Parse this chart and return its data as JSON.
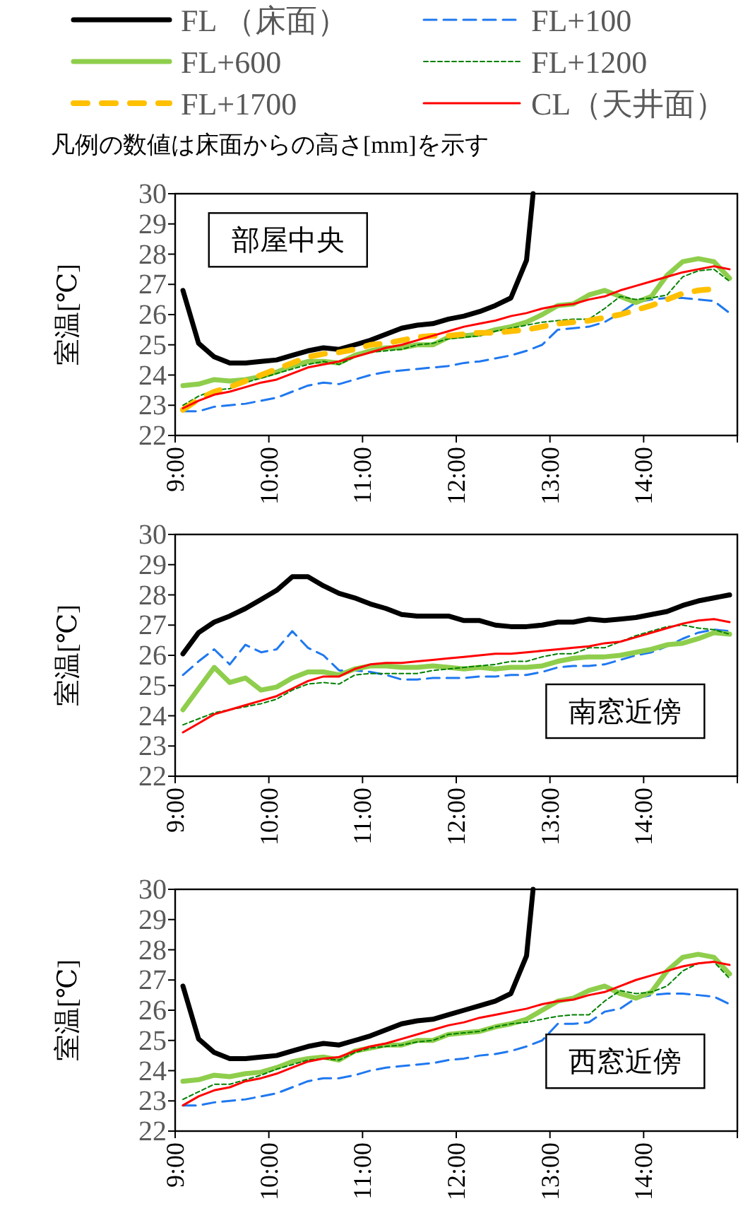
{
  "chart_data": [
    {
      "type": "line",
      "title": "部屋中央",
      "ylabel": "室温[℃]",
      "legend": "top",
      "annotations": [
        "凡例の数値は床面からの高さ[mm]を示す"
      ],
      "x": [
        9.083,
        9.25,
        9.417,
        9.583,
        9.75,
        9.917,
        10.083,
        10.25,
        10.417,
        10.583,
        10.75,
        10.917,
        11.083,
        11.25,
        11.417,
        11.583,
        11.75,
        11.917,
        12.083,
        12.25,
        12.417,
        12.583,
        12.75,
        12.917,
        13.083,
        13.25,
        13.417,
        13.583,
        13.75,
        13.917,
        14.083,
        14.25,
        14.417,
        14.583,
        14.75,
        14.917
      ],
      "xlim": [
        9,
        15
      ],
      "xticks": [
        {
          "value": 9,
          "label": "9:00"
        },
        {
          "value": 10,
          "label": "10:00"
        },
        {
          "value": 11,
          "label": "11:00"
        },
        {
          "value": 12,
          "label": "12:00"
        },
        {
          "value": 13,
          "label": "13:00"
        },
        {
          "value": 14,
          "label": "14:00"
        },
        {
          "value": 15,
          "label": null
        }
      ],
      "ylim": [
        22,
        30
      ],
      "yticks": [
        22,
        23,
        24,
        25,
        26,
        27,
        28,
        29,
        30
      ],
      "grid": false,
      "marker": "none",
      "series": [
        {
          "name": "FL （床面）",
          "color": "#000000",
          "line_style": "solid",
          "x": [
            9.083,
            9.25,
            9.417,
            9.583,
            9.75,
            9.917,
            10.083,
            10.25,
            10.417,
            10.583,
            10.75,
            10.917,
            11.083,
            11.25,
            11.417,
            11.583,
            11.75,
            11.917,
            12.083,
            12.25,
            12.417,
            12.583,
            12.75,
            12.82
          ],
          "values": [
            26.8,
            25.05,
            24.6,
            24.4,
            24.4,
            24.45,
            24.5,
            24.65,
            24.8,
            24.9,
            24.85,
            25.0,
            25.15,
            25.35,
            25.55,
            25.65,
            25.7,
            25.85,
            25.95,
            26.1,
            26.3,
            26.55,
            27.8,
            30
          ]
        },
        {
          "name": "FL+100",
          "color": "#1f78f0",
          "line_style": "dashed",
          "values": [
            22.8,
            22.8,
            22.95,
            23.0,
            23.05,
            23.15,
            23.25,
            23.45,
            23.65,
            23.75,
            23.7,
            23.85,
            24.0,
            24.1,
            24.15,
            24.2,
            24.25,
            24.3,
            24.4,
            24.45,
            24.55,
            24.65,
            24.8,
            25.0,
            25.5,
            25.55,
            25.6,
            25.75,
            26.05,
            26.4,
            26.5,
            26.55,
            26.55,
            26.5,
            26.45,
            26.05
          ]
        },
        {
          "name": "FL+600",
          "color": "#8fce4c",
          "line_style": "solid",
          "values": [
            23.65,
            23.7,
            23.85,
            23.8,
            23.85,
            23.95,
            24.1,
            24.3,
            24.45,
            24.45,
            24.4,
            24.65,
            24.8,
            24.9,
            24.9,
            25.0,
            25.0,
            25.25,
            25.3,
            25.35,
            25.5,
            25.6,
            25.75,
            26.0,
            26.3,
            26.35,
            26.65,
            26.8,
            26.6,
            26.4,
            26.6,
            27.3,
            27.75,
            27.85,
            27.75,
            27.2
          ]
        },
        {
          "name": "FL+1200",
          "color": "#008000",
          "line_style": "dotted",
          "values": [
            23.0,
            23.3,
            23.5,
            23.55,
            23.75,
            23.9,
            24.05,
            24.2,
            24.35,
            24.45,
            24.35,
            24.6,
            24.75,
            24.8,
            24.85,
            25.0,
            25.05,
            25.2,
            25.25,
            25.3,
            25.45,
            25.55,
            25.65,
            25.75,
            25.8,
            25.85,
            25.85,
            26.2,
            26.6,
            26.5,
            26.55,
            26.65,
            27.25,
            27.45,
            27.5,
            27.1
          ]
        },
        {
          "name": "FL+1700",
          "color": "#ffc000",
          "line_style": "dashed",
          "values": [
            22.85,
            23.2,
            23.45,
            23.6,
            23.8,
            24.0,
            24.2,
            24.4,
            24.6,
            24.7,
            24.75,
            24.85,
            25.0,
            25.05,
            25.15,
            25.25,
            25.3,
            25.3,
            25.35,
            25.4,
            25.4,
            25.45,
            25.5,
            25.6,
            25.7,
            25.75,
            25.8,
            25.9,
            26.0,
            26.15,
            26.3,
            26.5,
            26.7,
            26.8,
            26.85,
            null
          ]
        },
        {
          "name": "CL（天井面）",
          "color": "#ff0000",
          "line_style": "solid",
          "values": [
            22.9,
            23.15,
            23.35,
            23.45,
            23.6,
            23.75,
            23.85,
            24.05,
            24.25,
            24.35,
            24.45,
            24.6,
            24.75,
            24.9,
            25.0,
            25.15,
            25.3,
            25.45,
            25.6,
            25.7,
            25.8,
            25.95,
            26.05,
            26.2,
            26.3,
            26.35,
            26.5,
            26.6,
            26.8,
            26.95,
            27.1,
            27.25,
            27.4,
            27.5,
            27.6,
            27.5
          ]
        }
      ]
    },
    {
      "type": "line",
      "title": "南窓近傍",
      "ylabel": "室温[℃]",
      "x": [
        9.083,
        9.25,
        9.417,
        9.583,
        9.75,
        9.917,
        10.083,
        10.25,
        10.417,
        10.583,
        10.75,
        10.917,
        11.083,
        11.25,
        11.417,
        11.583,
        11.75,
        11.917,
        12.083,
        12.25,
        12.417,
        12.583,
        12.75,
        12.917,
        13.083,
        13.25,
        13.417,
        13.583,
        13.75,
        13.917,
        14.083,
        14.25,
        14.417,
        14.583,
        14.75,
        14.917
      ],
      "xlim": [
        9,
        15
      ],
      "xticks": [
        {
          "value": 9,
          "label": "9:00"
        },
        {
          "value": 10,
          "label": "10:00"
        },
        {
          "value": 11,
          "label": "11:00"
        },
        {
          "value": 12,
          "label": "12:00"
        },
        {
          "value": 13,
          "label": "13:00"
        },
        {
          "value": 14,
          "label": "14:00"
        },
        {
          "value": 15,
          "label": null
        }
      ],
      "ylim": [
        22,
        30
      ],
      "yticks": [
        22,
        23,
        24,
        25,
        26,
        27,
        28,
        29,
        30
      ],
      "grid": false,
      "marker": "none",
      "series": [
        {
          "color": "#000000",
          "line_style": "solid",
          "values": [
            26.05,
            26.75,
            27.1,
            27.3,
            27.55,
            27.85,
            28.15,
            28.6,
            28.6,
            28.3,
            28.05,
            27.9,
            27.7,
            27.55,
            27.35,
            27.3,
            27.3,
            27.3,
            27.15,
            27.15,
            27.0,
            26.95,
            26.95,
            27.0,
            27.1,
            27.1,
            27.2,
            27.15,
            27.2,
            27.25,
            27.35,
            27.45,
            27.65,
            27.8,
            27.9,
            28.0
          ]
        },
        {
          "color": "#1f78f0",
          "line_style": "dashed",
          "values": [
            25.35,
            25.8,
            26.2,
            25.7,
            26.35,
            26.1,
            26.2,
            26.8,
            26.25,
            26.0,
            25.5,
            25.5,
            25.45,
            25.35,
            25.2,
            25.2,
            25.25,
            25.25,
            25.25,
            25.3,
            25.3,
            25.35,
            25.35,
            25.45,
            25.6,
            25.65,
            25.65,
            25.7,
            25.85,
            26.0,
            26.1,
            26.3,
            26.55,
            26.75,
            26.85,
            26.8
          ]
        },
        {
          "color": "#8fce4c",
          "line_style": "solid",
          "values": [
            24.2,
            24.9,
            25.6,
            25.1,
            25.25,
            24.85,
            24.95,
            25.25,
            25.45,
            25.45,
            25.35,
            25.55,
            25.65,
            25.65,
            25.6,
            25.6,
            25.65,
            25.6,
            25.55,
            25.6,
            25.55,
            25.6,
            25.6,
            25.65,
            25.8,
            25.9,
            25.95,
            25.95,
            26.0,
            26.1,
            26.2,
            26.35,
            26.4,
            26.55,
            26.75,
            26.7
          ]
        },
        {
          "color": "#008000",
          "line_style": "dotted",
          "values": [
            23.7,
            23.9,
            24.1,
            24.2,
            24.3,
            24.4,
            24.55,
            24.85,
            25.05,
            25.1,
            25.05,
            25.35,
            25.4,
            25.4,
            25.4,
            25.4,
            25.5,
            25.55,
            25.6,
            25.65,
            25.7,
            25.8,
            25.8,
            25.95,
            26.05,
            26.05,
            26.25,
            26.25,
            26.45,
            26.65,
            26.8,
            26.95,
            27.0,
            26.9,
            26.85,
            26.7
          ]
        },
        {
          "color": "#ff0000",
          "line_style": "solid",
          "values": [
            23.45,
            23.75,
            24.05,
            24.2,
            24.35,
            24.5,
            24.65,
            24.9,
            25.15,
            25.3,
            25.3,
            25.55,
            25.7,
            25.75,
            25.75,
            25.8,
            25.85,
            25.9,
            25.95,
            26.0,
            26.05,
            26.05,
            26.1,
            26.15,
            26.2,
            26.25,
            26.3,
            26.4,
            26.45,
            26.6,
            26.75,
            26.9,
            27.05,
            27.15,
            27.2,
            27.1
          ]
        }
      ]
    },
    {
      "type": "line",
      "title": "西窓近傍",
      "ylabel": "室温[℃]",
      "x": [
        9.083,
        9.25,
        9.417,
        9.583,
        9.75,
        9.917,
        10.083,
        10.25,
        10.417,
        10.583,
        10.75,
        10.917,
        11.083,
        11.25,
        11.417,
        11.583,
        11.75,
        11.917,
        12.083,
        12.25,
        12.417,
        12.583,
        12.75,
        12.917,
        13.083,
        13.25,
        13.417,
        13.583,
        13.75,
        13.917,
        14.083,
        14.25,
        14.417,
        14.583,
        14.75,
        14.917
      ],
      "xlim": [
        9,
        15
      ],
      "xticks": [
        {
          "value": 9,
          "label": "9:00"
        },
        {
          "value": 10,
          "label": "10:00"
        },
        {
          "value": 11,
          "label": "11:00"
        },
        {
          "value": 12,
          "label": "12:00"
        },
        {
          "value": 13,
          "label": "13:00"
        },
        {
          "value": 14,
          "label": "14:00"
        },
        {
          "value": 15,
          "label": null
        }
      ],
      "ylim": [
        22,
        30
      ],
      "yticks": [
        22,
        23,
        24,
        25,
        26,
        27,
        28,
        29,
        30
      ],
      "grid": false,
      "marker": "none",
      "series": [
        {
          "color": "#000000",
          "line_style": "solid",
          "x": [
            9.083,
            9.25,
            9.417,
            9.583,
            9.75,
            9.917,
            10.083,
            10.25,
            10.417,
            10.583,
            10.75,
            10.917,
            11.083,
            11.25,
            11.417,
            11.583,
            11.75,
            11.917,
            12.083,
            12.25,
            12.417,
            12.583,
            12.75,
            12.82
          ],
          "values": [
            26.8,
            25.05,
            24.6,
            24.4,
            24.4,
            24.45,
            24.5,
            24.65,
            24.8,
            24.9,
            24.85,
            25.0,
            25.15,
            25.35,
            25.55,
            25.65,
            25.7,
            25.85,
            26.0,
            26.15,
            26.3,
            26.55,
            27.8,
            30
          ]
        },
        {
          "color": "#1f78f0",
          "line_style": "dashed",
          "values": [
            22.85,
            22.85,
            22.95,
            23.0,
            23.05,
            23.15,
            23.25,
            23.45,
            23.65,
            23.75,
            23.75,
            23.85,
            24.0,
            24.1,
            24.15,
            24.2,
            24.25,
            24.35,
            24.4,
            24.5,
            24.55,
            24.65,
            24.8,
            25.0,
            25.55,
            25.55,
            25.6,
            25.95,
            26.05,
            26.4,
            26.5,
            26.55,
            26.55,
            26.5,
            26.45,
            26.2
          ]
        },
        {
          "color": "#8fce4c",
          "line_style": "solid",
          "values": [
            23.65,
            23.7,
            23.85,
            23.8,
            23.9,
            23.95,
            24.1,
            24.3,
            24.4,
            24.45,
            24.35,
            24.65,
            24.75,
            24.85,
            24.85,
            25.0,
            25.0,
            25.2,
            25.25,
            25.3,
            25.45,
            25.55,
            25.7,
            26.0,
            26.3,
            26.4,
            26.65,
            26.8,
            26.55,
            26.4,
            26.6,
            27.3,
            27.75,
            27.85,
            27.75,
            27.2
          ]
        },
        {
          "color": "#008000",
          "line_style": "dotted",
          "values": [
            23.05,
            23.3,
            23.55,
            23.55,
            23.7,
            23.85,
            24.05,
            24.2,
            24.35,
            24.4,
            24.35,
            24.6,
            24.75,
            24.8,
            24.85,
            24.95,
            25.0,
            25.2,
            25.25,
            25.3,
            25.45,
            25.55,
            25.6,
            25.7,
            25.8,
            25.85,
            25.85,
            26.3,
            26.65,
            26.55,
            26.6,
            26.8,
            27.3,
            27.55,
            27.6,
            27.05
          ]
        },
        {
          "color": "#ff0000",
          "line_style": "solid",
          "values": [
            22.85,
            23.15,
            23.35,
            23.45,
            23.65,
            23.75,
            23.9,
            24.1,
            24.3,
            24.4,
            24.45,
            24.65,
            24.8,
            24.9,
            25.05,
            25.2,
            25.35,
            25.5,
            25.6,
            25.75,
            25.85,
            25.95,
            26.05,
            26.2,
            26.3,
            26.35,
            26.5,
            26.6,
            26.8,
            27.0,
            27.15,
            27.3,
            27.45,
            27.55,
            27.6,
            27.5
          ]
        }
      ]
    }
  ]
}
